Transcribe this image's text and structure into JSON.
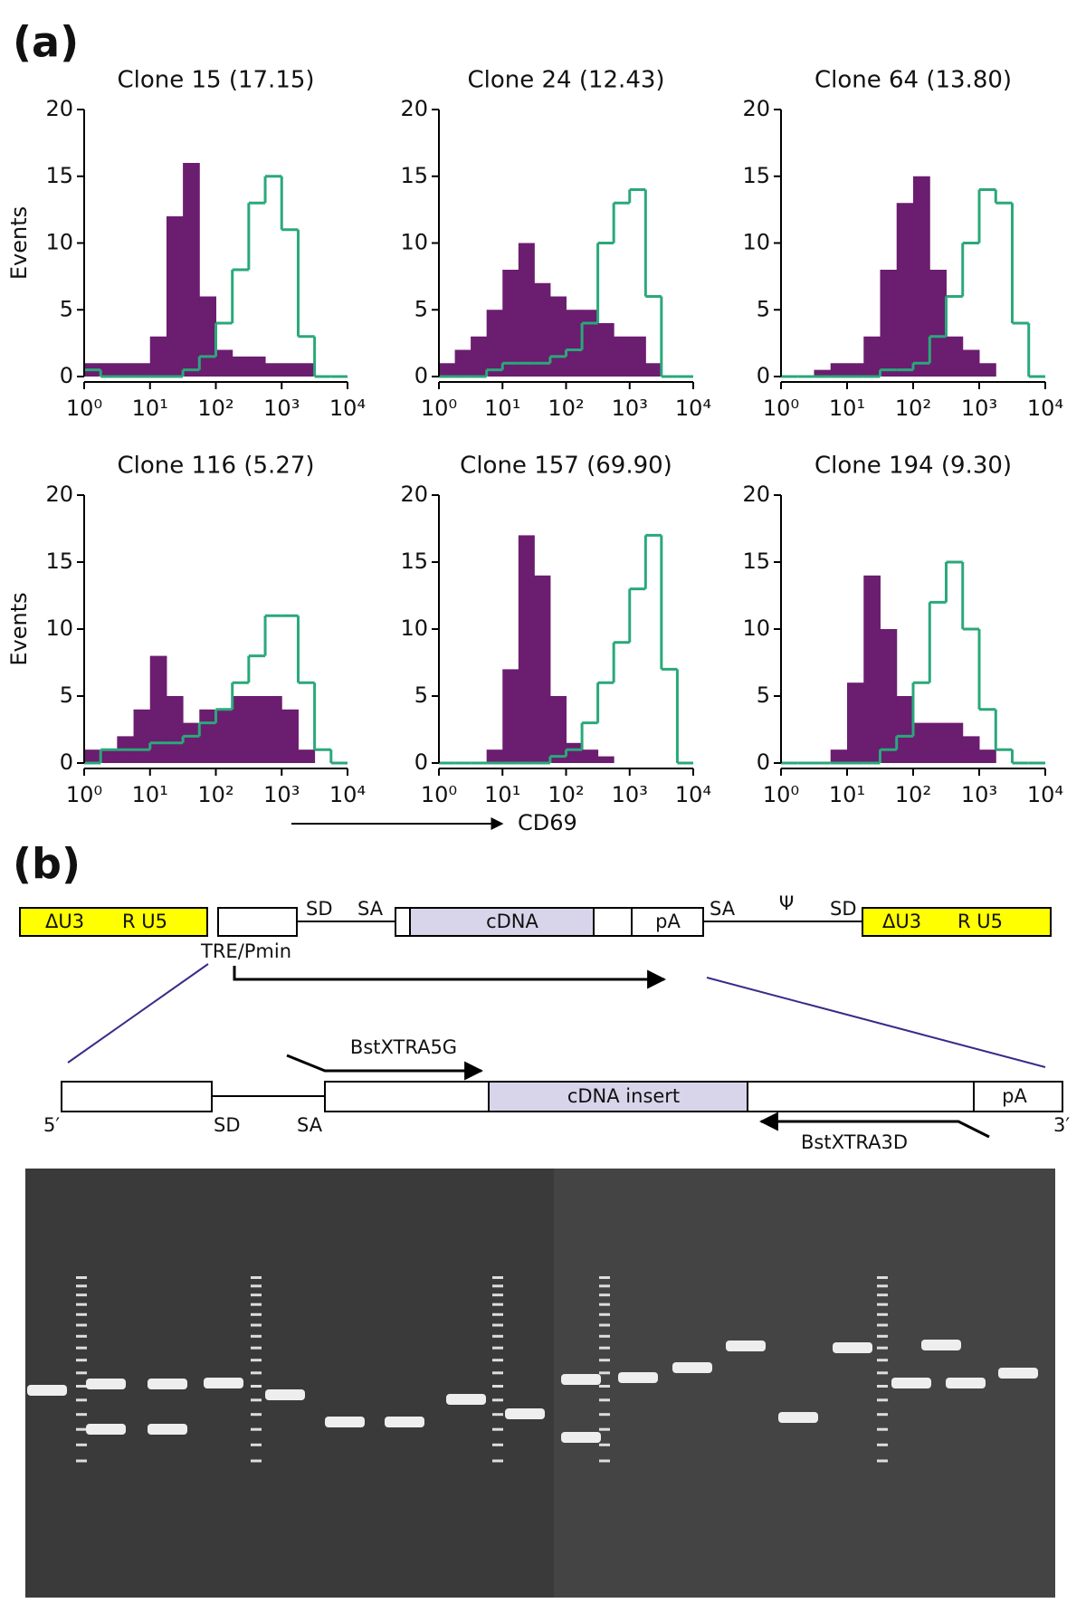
{
  "panel_labels": [
    "(a)",
    "(b)"
  ],
  "shared_xlabel": "CD69",
  "chart_data": [
    {
      "type": "histogram",
      "title": "Clone 15 (17.15)",
      "ylabel": "Events",
      "log_x": true,
      "bins": [
        1,
        1.78,
        3.16,
        5.62,
        10,
        17.8,
        31.6,
        56.2,
        100,
        178,
        316,
        562,
        1000,
        1780,
        3160,
        5620,
        10000
      ],
      "xlim": [
        1,
        10000
      ],
      "xticks": [
        {
          "value": 1,
          "label": "10⁰"
        },
        {
          "value": 10,
          "label": "10¹"
        },
        {
          "value": 100,
          "label": "10²"
        },
        {
          "value": 1000,
          "label": "10³"
        },
        {
          "value": 10000,
          "label": "10⁴"
        }
      ],
      "ylim": [
        0,
        20
      ],
      "yticks": [
        0,
        5,
        10,
        15,
        20
      ],
      "series": [
        {
          "color": "#6b1d6f",
          "fill": true,
          "values": [
            1,
            1,
            1,
            1,
            3,
            12,
            16,
            6,
            2,
            1.5,
            1.5,
            1,
            1,
            1,
            0,
            0
          ]
        },
        {
          "color": "#2aa87a",
          "fill": false,
          "values": [
            0.5,
            0,
            0,
            0,
            0,
            0,
            0.5,
            1.5,
            4,
            8,
            13,
            15,
            11,
            3,
            0,
            0
          ]
        }
      ]
    },
    {
      "type": "histogram",
      "title": "Clone 24 (12.43)",
      "log_x": true,
      "bins": [
        1,
        1.78,
        3.16,
        5.62,
        10,
        17.8,
        31.6,
        56.2,
        100,
        178,
        316,
        562,
        1000,
        1780,
        3160,
        5620,
        10000
      ],
      "xlim": [
        1,
        10000
      ],
      "xticks": [
        {
          "value": 1,
          "label": "10⁰"
        },
        {
          "value": 10,
          "label": "10¹"
        },
        {
          "value": 100,
          "label": "10²"
        },
        {
          "value": 1000,
          "label": "10³"
        },
        {
          "value": 10000,
          "label": "10⁴"
        }
      ],
      "ylim": [
        0,
        20
      ],
      "yticks": [
        0,
        5,
        10,
        15,
        20
      ],
      "series": [
        {
          "color": "#6b1d6f",
          "fill": true,
          "values": [
            1,
            2,
            3,
            5,
            8,
            10,
            7,
            6,
            5,
            5,
            4,
            3,
            3,
            1,
            0,
            0
          ]
        },
        {
          "color": "#2aa87a",
          "fill": false,
          "values": [
            0,
            0,
            0,
            0.5,
            1,
            1,
            1,
            1.5,
            2,
            4,
            10,
            13,
            14,
            6,
            0,
            0
          ]
        }
      ]
    },
    {
      "type": "histogram",
      "title": "Clone 64 (13.80)",
      "log_x": true,
      "bins": [
        1,
        1.78,
        3.16,
        5.62,
        10,
        17.8,
        31.6,
        56.2,
        100,
        178,
        316,
        562,
        1000,
        1780,
        3160,
        5620,
        10000
      ],
      "xlim": [
        1,
        10000
      ],
      "xticks": [
        {
          "value": 1,
          "label": "10⁰"
        },
        {
          "value": 10,
          "label": "10¹"
        },
        {
          "value": 100,
          "label": "10²"
        },
        {
          "value": 1000,
          "label": "10³"
        },
        {
          "value": 10000,
          "label": "10⁴"
        }
      ],
      "ylim": [
        0,
        20
      ],
      "yticks": [
        0,
        5,
        10,
        15,
        20
      ],
      "series": [
        {
          "color": "#6b1d6f",
          "fill": true,
          "values": [
            0,
            0,
            0.5,
            1,
            1,
            3,
            8,
            13,
            15,
            8,
            3,
            2,
            1,
            0,
            0,
            0
          ]
        },
        {
          "color": "#2aa87a",
          "fill": false,
          "values": [
            0,
            0,
            0,
            0,
            0,
            0,
            0.5,
            0.5,
            1,
            3,
            6,
            10,
            14,
            13,
            4,
            0
          ]
        }
      ]
    },
    {
      "type": "histogram",
      "title": "Clone 116 (5.27)",
      "ylabel": "Events",
      "log_x": true,
      "bins": [
        1,
        1.78,
        3.16,
        5.62,
        10,
        17.8,
        31.6,
        56.2,
        100,
        178,
        316,
        562,
        1000,
        1780,
        3160,
        5620,
        10000
      ],
      "xlim": [
        1,
        10000
      ],
      "xticks": [
        {
          "value": 1,
          "label": "10⁰"
        },
        {
          "value": 10,
          "label": "10¹"
        },
        {
          "value": 100,
          "label": "10²"
        },
        {
          "value": 1000,
          "label": "10³"
        },
        {
          "value": 10000,
          "label": "10⁴"
        }
      ],
      "ylim": [
        0,
        20
      ],
      "yticks": [
        0,
        5,
        10,
        15,
        20
      ],
      "series": [
        {
          "color": "#6b1d6f",
          "fill": true,
          "values": [
            1,
            1,
            2,
            4,
            8,
            5,
            3,
            4,
            4,
            5,
            5,
            5,
            4,
            1,
            0,
            0
          ]
        },
        {
          "color": "#2aa87a",
          "fill": false,
          "values": [
            0,
            1,
            1,
            1,
            1.5,
            1.5,
            2,
            3,
            4,
            6,
            8,
            11,
            11,
            6,
            1,
            0
          ]
        }
      ]
    },
    {
      "type": "histogram",
      "title": "Clone 157 (69.90)",
      "log_x": true,
      "bins": [
        1,
        1.78,
        3.16,
        5.62,
        10,
        17.8,
        31.6,
        56.2,
        100,
        178,
        316,
        562,
        1000,
        1780,
        3160,
        5620,
        10000
      ],
      "xlim": [
        1,
        10000
      ],
      "xticks": [
        {
          "value": 1,
          "label": "10⁰"
        },
        {
          "value": 10,
          "label": "10¹"
        },
        {
          "value": 100,
          "label": "10²"
        },
        {
          "value": 1000,
          "label": "10³"
        },
        {
          "value": 10000,
          "label": "10⁴"
        }
      ],
      "ylim": [
        0,
        20
      ],
      "yticks": [
        0,
        5,
        10,
        15,
        20
      ],
      "series": [
        {
          "color": "#6b1d6f",
          "fill": true,
          "values": [
            0,
            0,
            0,
            1,
            7,
            17,
            14,
            5,
            1.5,
            1,
            0.5,
            0,
            0,
            0,
            0,
            0
          ]
        },
        {
          "color": "#2aa87a",
          "fill": false,
          "values": [
            0,
            0,
            0,
            0,
            0,
            0,
            0,
            0.5,
            1,
            3,
            6,
            9,
            13,
            17,
            7,
            0
          ]
        }
      ]
    },
    {
      "type": "histogram",
      "title": "Clone 194 (9.30)",
      "log_x": true,
      "bins": [
        1,
        1.78,
        3.16,
        5.62,
        10,
        17.8,
        31.6,
        56.2,
        100,
        178,
        316,
        562,
        1000,
        1780,
        3160,
        5620,
        10000
      ],
      "xlim": [
        1,
        10000
      ],
      "xticks": [
        {
          "value": 1,
          "label": "10⁰"
        },
        {
          "value": 10,
          "label": "10¹"
        },
        {
          "value": 100,
          "label": "10²"
        },
        {
          "value": 1000,
          "label": "10³"
        },
        {
          "value": 10000,
          "label": "10⁴"
        }
      ],
      "ylim": [
        0,
        20
      ],
      "yticks": [
        0,
        5,
        10,
        15,
        20
      ],
      "series": [
        {
          "color": "#6b1d6f",
          "fill": true,
          "values": [
            0,
            0,
            0,
            1,
            6,
            14,
            10,
            5,
            3,
            3,
            3,
            2,
            1,
            0,
            0,
            0
          ]
        },
        {
          "color": "#2aa87a",
          "fill": false,
          "values": [
            0,
            0,
            0,
            0,
            0,
            0,
            1,
            2,
            6,
            12,
            15,
            10,
            4,
            1,
            0,
            0
          ]
        }
      ]
    }
  ],
  "diagram": {
    "vector": {
      "left_ltr": [
        "ΔU3",
        "R U5"
      ],
      "sd1": "SD",
      "sa1": "SA",
      "cdna": "cDNA",
      "pa": "pA",
      "sa2": "SA",
      "psi": "Ψ",
      "sd2": "SD",
      "right_ltr": [
        "ΔU3",
        "R U5"
      ],
      "promoter": "TRE/Pmin"
    },
    "insert": {
      "primer_fwd": "BstXTRA5G",
      "cdna": "cDNA insert",
      "pa": "pA",
      "end5": "5′",
      "sd": "SD",
      "sa": "SA",
      "primer_rev": "BstXTRA3D",
      "end3": "3′"
    }
  }
}
